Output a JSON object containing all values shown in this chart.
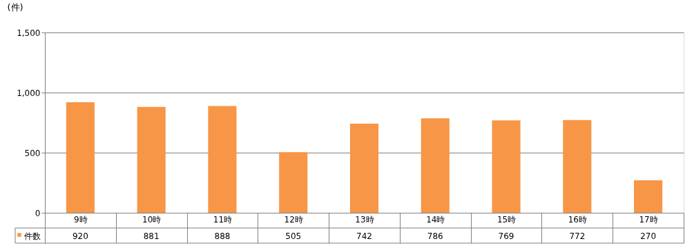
{
  "chart_data": {
    "type": "bar",
    "ylabel": "(件)",
    "categories": [
      "9時",
      "10時",
      "11時",
      "12時",
      "13時",
      "14時",
      "15時",
      "16時",
      "17時"
    ],
    "series": [
      {
        "name": "件数",
        "color": "#f79646",
        "values": [
          920,
          881,
          888,
          505,
          742,
          786,
          769,
          772,
          270
        ]
      }
    ],
    "ylim": [
      0,
      1500
    ],
    "yticks": [
      0,
      500,
      {
        "value": 1000,
        "label": "1,000"
      },
      {
        "value": 1500,
        "label": "1,500"
      }
    ],
    "grid": "y",
    "legend": "bottom",
    "data_labels": true
  }
}
